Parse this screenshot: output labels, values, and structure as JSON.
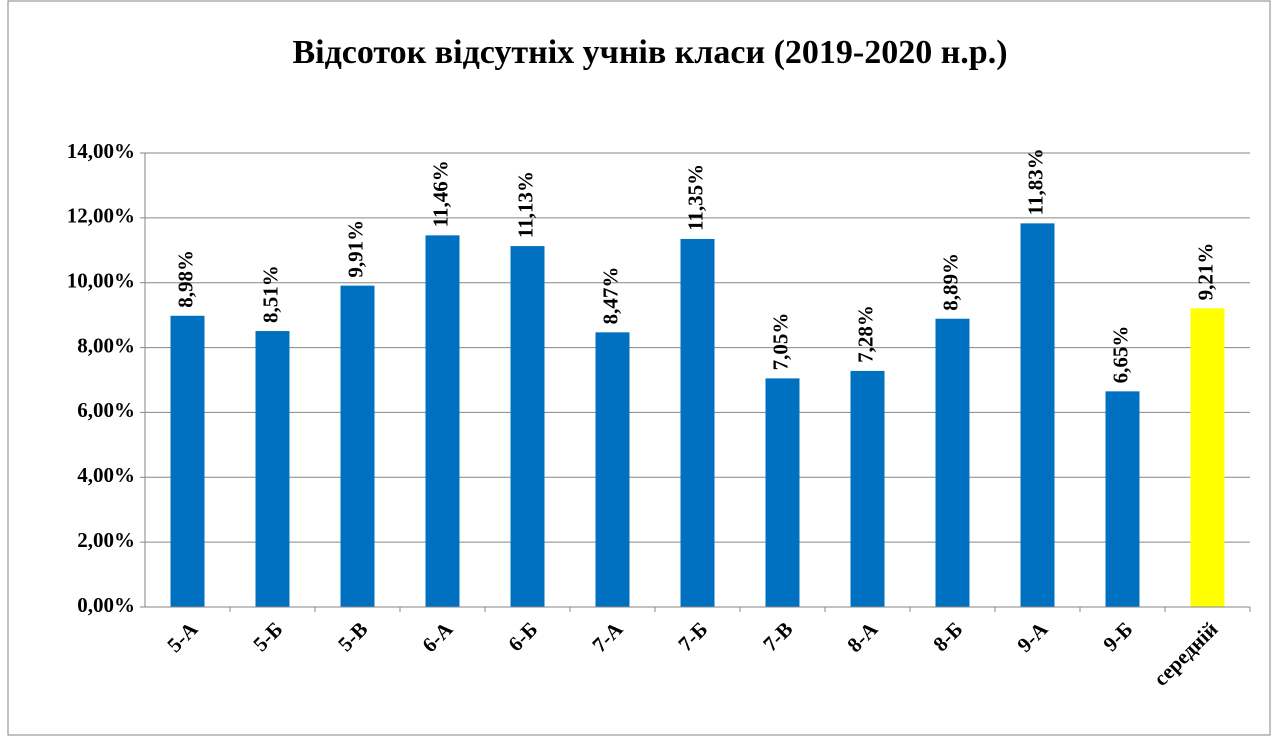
{
  "chart_data": {
    "type": "bar",
    "title": "Відсоток відсутніх учнів класи (2019-2020 н.р.)",
    "categories": [
      "5-А",
      "5-Б",
      "5-В",
      "6-А",
      "6-Б",
      "7-А",
      "7-Б",
      "7-В",
      "8-А",
      "8-Б",
      "9-А",
      "9-Б",
      "середній"
    ],
    "values": [
      8.98,
      8.51,
      9.91,
      11.46,
      11.13,
      8.47,
      11.35,
      7.05,
      7.28,
      8.89,
      11.83,
      6.65,
      9.21
    ],
    "value_labels": [
      "8,98%",
      "8,51%",
      "9,91%",
      "11,46%",
      "11,13%",
      "8,47%",
      "11,35%",
      "7,05%",
      "7,28%",
      "8,89%",
      "11,83%",
      "6,65%",
      "9,21%"
    ],
    "colors": [
      "#0070c0",
      "#0070c0",
      "#0070c0",
      "#0070c0",
      "#0070c0",
      "#0070c0",
      "#0070c0",
      "#0070c0",
      "#0070c0",
      "#0070c0",
      "#0070c0",
      "#0070c0",
      "#ffff00"
    ],
    "ylim": [
      0,
      14
    ],
    "yticks": [
      {
        "value": 0,
        "label": "0,00%"
      },
      {
        "value": 2,
        "label": "2,00%"
      },
      {
        "value": 4,
        "label": "4,00%"
      },
      {
        "value": 6,
        "label": "6,00%"
      },
      {
        "value": 8,
        "label": "8,00%"
      },
      {
        "value": 10,
        "label": "10,00%"
      },
      {
        "value": 12,
        "label": "12,00%"
      },
      {
        "value": 14,
        "label": "14,00%"
      }
    ],
    "grid": true
  }
}
